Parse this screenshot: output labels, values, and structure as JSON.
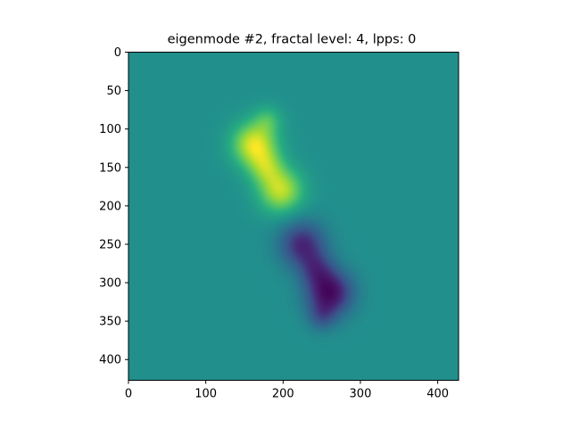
{
  "chart_data": {
    "type": "heatmap",
    "title": "eigenmode #2, fractal level: 4, lpps: 0",
    "xlabel": "",
    "ylabel": "",
    "colormap": "viridis",
    "background_value_color": "#21908d",
    "xlim": [
      0,
      427
    ],
    "ylim": [
      427,
      0
    ],
    "x_ticks": [
      0,
      100,
      200,
      300,
      400
    ],
    "y_ticks": [
      0,
      50,
      100,
      150,
      200,
      250,
      300,
      350,
      400
    ],
    "grid": false,
    "features": [
      {
        "kind": "positive-peak",
        "x": 163,
        "y": 120,
        "sigma": 20,
        "amplitude": 1.0
      },
      {
        "kind": "positive-peak",
        "x": 180,
        "y": 88,
        "sigma": 13,
        "amplitude": 0.35
      },
      {
        "kind": "positive-peak",
        "x": 197,
        "y": 180,
        "sigma": 20,
        "amplitude": 0.88
      },
      {
        "kind": "positive-peak",
        "x": 178,
        "y": 150,
        "sigma": 16,
        "amplitude": 0.55
      },
      {
        "kind": "negative-peak",
        "x": 225,
        "y": 250,
        "sigma": 21,
        "amplitude": -0.78
      },
      {
        "kind": "negative-peak",
        "x": 243,
        "y": 282,
        "sigma": 16,
        "amplitude": -0.45
      },
      {
        "kind": "negative-peak",
        "x": 260,
        "y": 313,
        "sigma": 21,
        "amplitude": -1.0
      },
      {
        "kind": "negative-peak",
        "x": 250,
        "y": 345,
        "sigma": 13,
        "amplitude": -0.35
      }
    ]
  }
}
